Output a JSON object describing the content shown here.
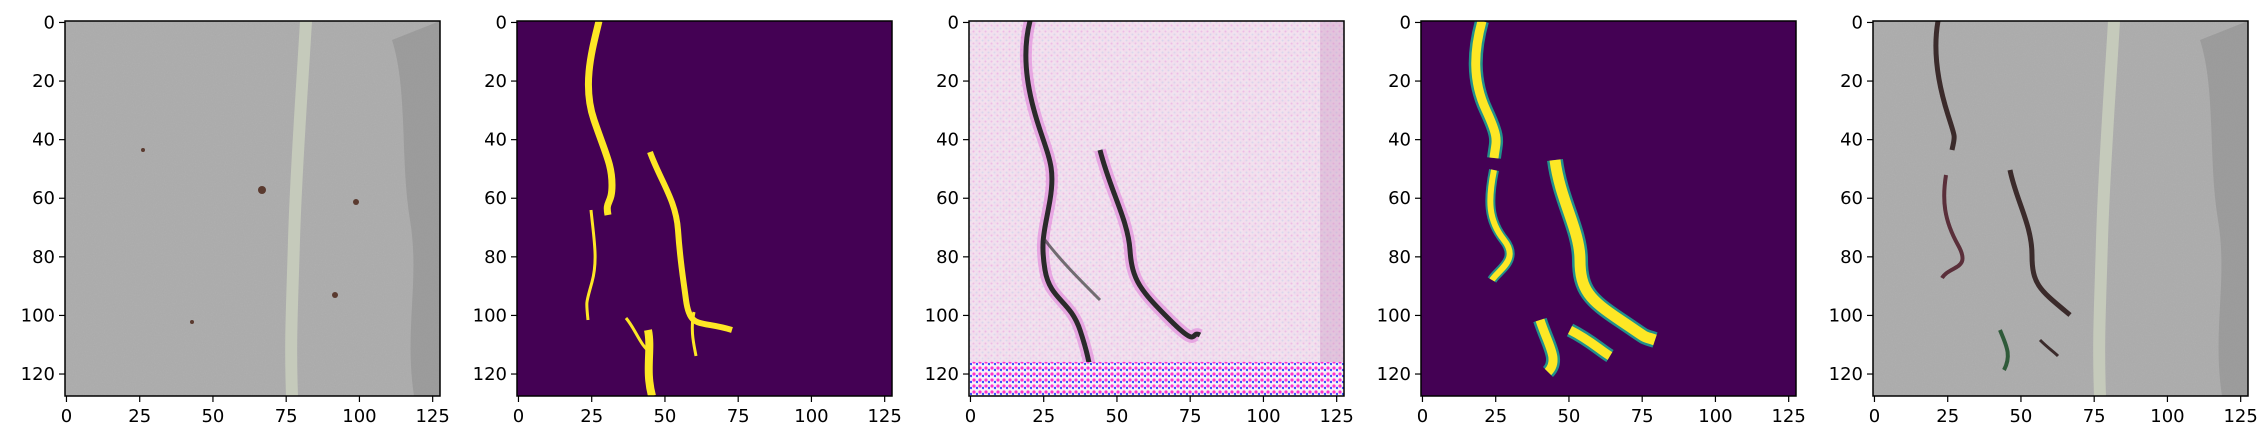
{
  "panels": [
    {
      "kind": "concrete_input",
      "title": ""
    },
    {
      "kind": "mask_target",
      "title": ""
    },
    {
      "kind": "generated_crack",
      "title": ""
    },
    {
      "kind": "mask_predicted",
      "title": ""
    },
    {
      "kind": "overlay_result",
      "title": ""
    }
  ],
  "axes": {
    "x_ticks": [
      "0",
      "25",
      "50",
      "75",
      "100",
      "125"
    ],
    "y_ticks": [
      "0",
      "20",
      "40",
      "60",
      "80",
      "100",
      "120"
    ],
    "x_tick_values": [
      0,
      25,
      50,
      75,
      100,
      125
    ],
    "y_tick_values": [
      0,
      20,
      40,
      60,
      80,
      100,
      120
    ],
    "xlim": [
      -0.5,
      127.5
    ],
    "ylim": [
      127.5,
      -0.5
    ]
  },
  "colors": {
    "concrete": "#a9a9a9",
    "viridis_low": "#440154",
    "viridis_high": "#fde725",
    "viridis_mid": "#21918c",
    "generated_bg": "#f3e7ef",
    "crack_dark": "#2a2a2a",
    "tick_text": "#000000"
  }
}
